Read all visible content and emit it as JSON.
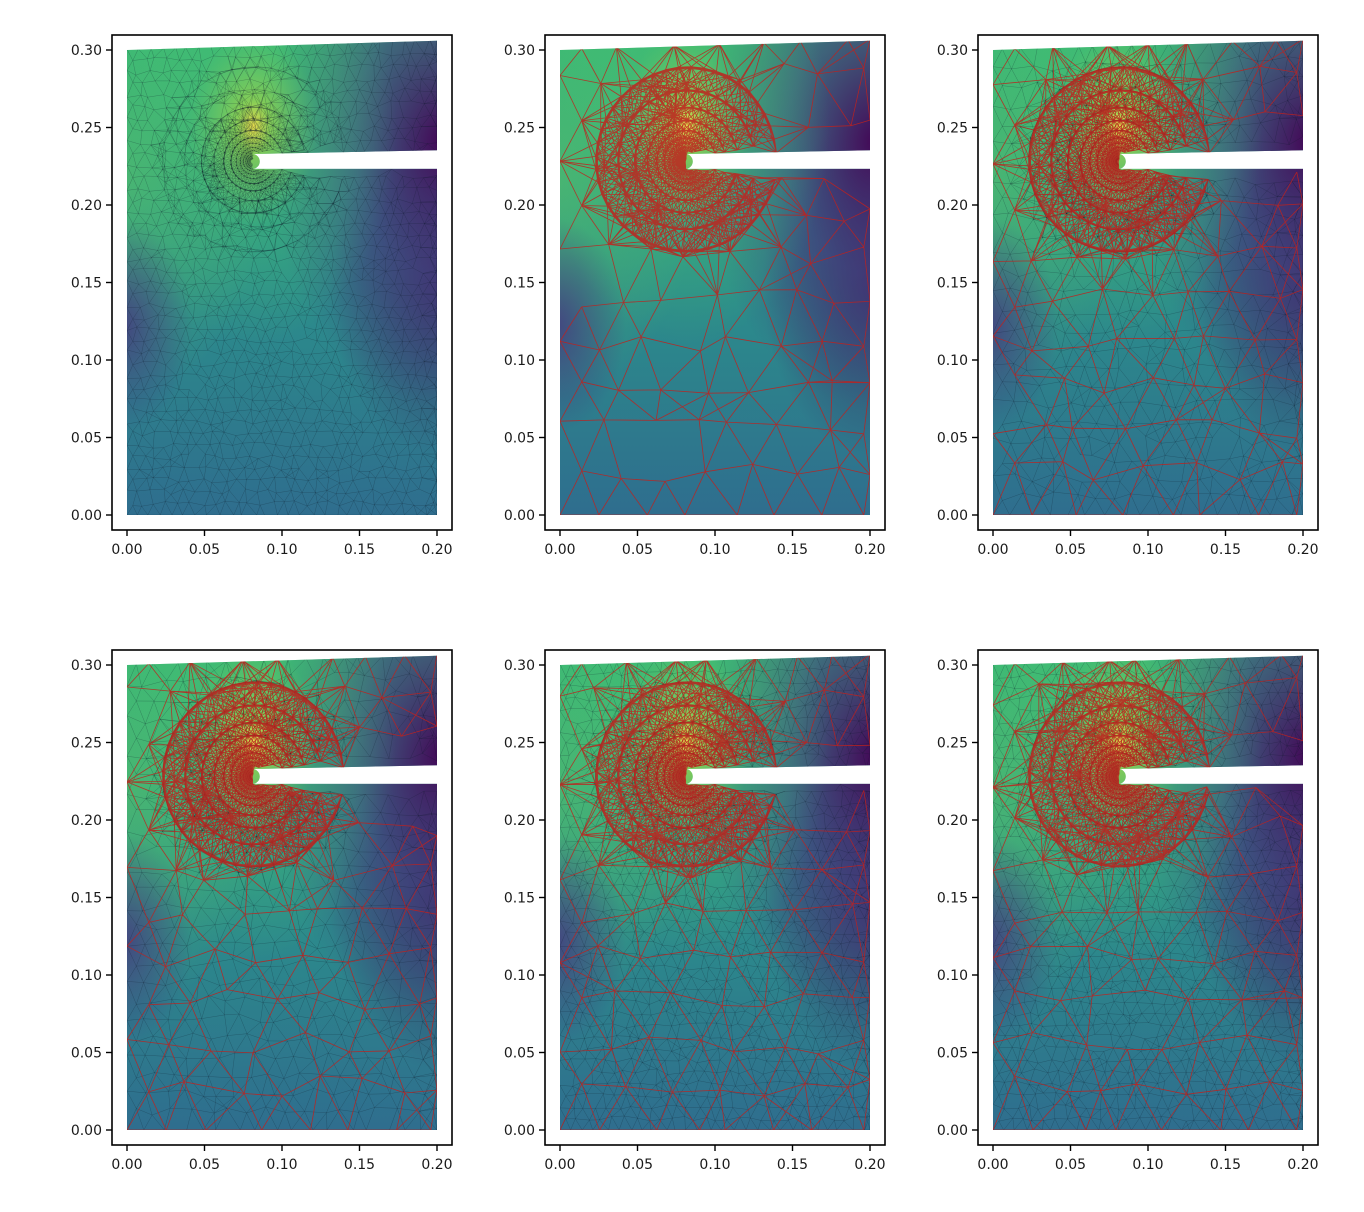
{
  "chart_data": [
    {
      "type": "heatmap",
      "panel": "row1-col1",
      "mesh": "fine",
      "overlay_coarse": false,
      "xlim": [
        0.0,
        0.2
      ],
      "ylim": [
        0.0,
        0.3
      ],
      "xticks": [
        "0.00",
        "0.05",
        "0.10",
        "0.15",
        "0.20"
      ],
      "yticks": [
        "0.00",
        "0.05",
        "0.10",
        "0.15",
        "0.20",
        "0.25",
        "0.30"
      ],
      "colormap": "viridis",
      "title": "",
      "xlabel": "",
      "ylabel": ""
    },
    {
      "type": "heatmap",
      "panel": "row1-col2",
      "mesh": "coarse",
      "overlay_coarse": true,
      "xlim": [
        0.0,
        0.2
      ],
      "ylim": [
        0.0,
        0.3
      ],
      "xticks": [
        "0.00",
        "0.05",
        "0.10",
        "0.15",
        "0.20"
      ],
      "yticks": [
        "0.00",
        "0.05",
        "0.10",
        "0.15",
        "0.20",
        "0.25",
        "0.30"
      ],
      "colormap": "viridis",
      "title": "",
      "xlabel": "",
      "ylabel": ""
    },
    {
      "type": "heatmap",
      "panel": "row1-col3",
      "mesh": "medium",
      "overlay_coarse": true,
      "xlim": [
        0.0,
        0.2
      ],
      "ylim": [
        0.0,
        0.3
      ],
      "xticks": [
        "0.00",
        "0.05",
        "0.10",
        "0.15",
        "0.20"
      ],
      "yticks": [
        "0.00",
        "0.05",
        "0.10",
        "0.15",
        "0.20",
        "0.25",
        "0.30"
      ],
      "colormap": "viridis",
      "title": "",
      "xlabel": "",
      "ylabel": ""
    },
    {
      "type": "heatmap",
      "panel": "row2-col1",
      "mesh": "medium",
      "overlay_coarse": true,
      "xlim": [
        0.0,
        0.2
      ],
      "ylim": [
        0.0,
        0.3
      ],
      "xticks": [
        "0.00",
        "0.05",
        "0.10",
        "0.15",
        "0.20"
      ],
      "yticks": [
        "0.00",
        "0.05",
        "0.10",
        "0.15",
        "0.20",
        "0.25",
        "0.30"
      ],
      "colormap": "viridis",
      "title": "",
      "xlabel": "",
      "ylabel": ""
    },
    {
      "type": "heatmap",
      "panel": "row2-col2",
      "mesh": "fine",
      "overlay_coarse": true,
      "xlim": [
        0.0,
        0.2
      ],
      "ylim": [
        0.0,
        0.3
      ],
      "xticks": [
        "0.00",
        "0.05",
        "0.10",
        "0.15",
        "0.20"
      ],
      "yticks": [
        "0.00",
        "0.05",
        "0.10",
        "0.15",
        "0.20",
        "0.25",
        "0.30"
      ],
      "colormap": "viridis",
      "title": "",
      "xlabel": "",
      "ylabel": ""
    },
    {
      "type": "heatmap",
      "panel": "row2-col3",
      "mesh": "fine",
      "overlay_coarse": true,
      "xlim": [
        0.0,
        0.2
      ],
      "ylim": [
        0.0,
        0.3
      ],
      "xticks": [
        "0.00",
        "0.05",
        "0.10",
        "0.15",
        "0.20"
      ],
      "yticks": [
        "0.00",
        "0.05",
        "0.10",
        "0.15",
        "0.20",
        "0.25",
        "0.30"
      ],
      "colormap": "viridis",
      "title": "",
      "xlabel": "",
      "ylabel": ""
    }
  ],
  "colors": {
    "viridis": [
      "#440154",
      "#3b528b",
      "#21918c",
      "#5ec962",
      "#fde725"
    ],
    "coarse_mesh": "#c0211d",
    "fine_mesh": "#0d1a2a"
  }
}
